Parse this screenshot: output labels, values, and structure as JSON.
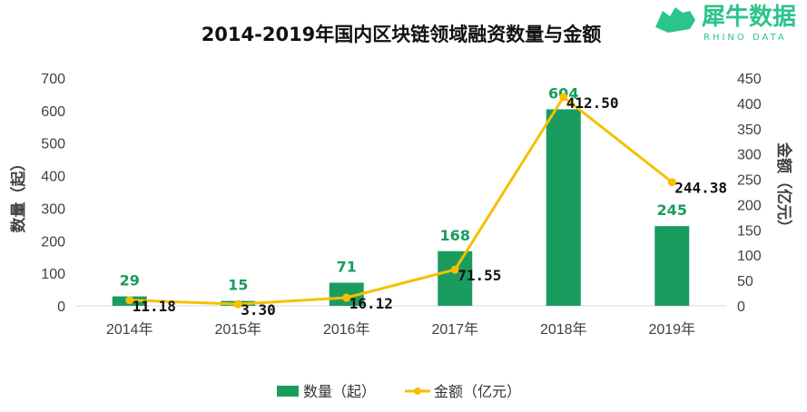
{
  "chart_data": {
    "type": "bar",
    "title": "2014-2019年国内区块链领域融资数量与金额",
    "categories": [
      "2014年",
      "2015年",
      "2016年",
      "2017年",
      "2018年",
      "2019年"
    ],
    "series": [
      {
        "name": "数量（起）",
        "type": "bar",
        "axis": "left",
        "values": [
          29,
          15,
          71,
          168,
          604,
          245
        ],
        "labels": [
          "29",
          "15",
          "71",
          "168",
          "604",
          "245"
        ]
      },
      {
        "name": "金额（亿元）",
        "type": "line",
        "axis": "right",
        "values": [
          11.18,
          3.3,
          16.12,
          71.55,
          412.5,
          244.38
        ],
        "labels": [
          "11.18",
          "3.30",
          "16.12",
          "71.55",
          "412.50",
          "244.38"
        ]
      }
    ],
    "y_left": {
      "label": "数量（起）",
      "ylim": [
        0,
        700
      ],
      "ticks": [
        "0",
        "100",
        "200",
        "300",
        "400",
        "500",
        "600",
        "700"
      ]
    },
    "y_right": {
      "label": "金额（亿元）",
      "ylim": [
        0,
        450
      ],
      "ticks": [
        "0",
        "50",
        "100",
        "150",
        "200",
        "250",
        "300",
        "350",
        "400",
        "450"
      ]
    },
    "grid": false,
    "legend": "bottom",
    "colors": {
      "bar": "#1a9c5e",
      "line": "#f5c000",
      "bar_label": "#1a9c5e"
    }
  },
  "logo": {
    "main": "犀牛数据",
    "sub": "RHINO DATA",
    "color": "#2bc48a"
  }
}
